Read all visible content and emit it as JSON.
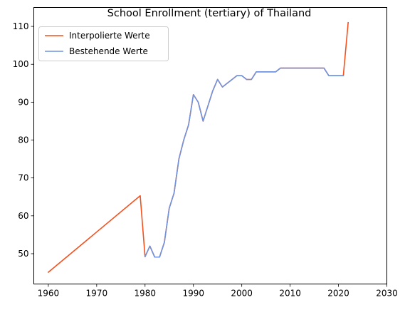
{
  "chart_data": {
    "type": "line",
    "title": "School Enrollment (tertiary) of Thailand",
    "xlabel": "",
    "ylabel": "",
    "xlim": [
      1957,
      2030
    ],
    "ylim": [
      42,
      115
    ],
    "xticks": [
      1960,
      1970,
      1980,
      1990,
      2000,
      2010,
      2020,
      2030
    ],
    "yticks": [
      50,
      60,
      70,
      80,
      90,
      100,
      110
    ],
    "grid": false,
    "legend_position": "top-left",
    "series": [
      {
        "name": "Interpolierte Werte",
        "color": "#f4511e",
        "points": [
          [
            1960,
            45.1
          ],
          [
            1979,
            65.3
          ],
          [
            1980,
            49.2
          ],
          [
            1981,
            52.0
          ],
          [
            1982,
            49.1
          ],
          [
            1983,
            49.1
          ],
          [
            1984,
            53.0
          ],
          [
            1985,
            62.0
          ],
          [
            1986,
            66.0
          ],
          [
            1987,
            75.0
          ],
          [
            1988,
            80.0
          ],
          [
            1989,
            84.0
          ],
          [
            1990,
            92.0
          ],
          [
            1991,
            90.0
          ],
          [
            1992,
            85.0
          ],
          [
            1993,
            89.0
          ],
          [
            1994,
            93.0
          ],
          [
            1995,
            96.0
          ],
          [
            1996,
            94.0
          ],
          [
            1997,
            95.0
          ],
          [
            1998,
            96.0
          ],
          [
            1999,
            97.0
          ],
          [
            2000,
            97.0
          ],
          [
            2001,
            96.0
          ],
          [
            2002,
            96.0
          ],
          [
            2003,
            98.0
          ],
          [
            2004,
            98.0
          ],
          [
            2005,
            98.0
          ],
          [
            2006,
            98.0
          ],
          [
            2007,
            98.0
          ],
          [
            2008,
            99.0
          ],
          [
            2009,
            99.0
          ],
          [
            2010,
            99.0
          ],
          [
            2011,
            99.0
          ],
          [
            2012,
            99.0
          ],
          [
            2013,
            99.0
          ],
          [
            2014,
            99.0
          ],
          [
            2015,
            99.0
          ],
          [
            2016,
            99.0
          ],
          [
            2017,
            99.0
          ],
          [
            2018,
            97.0
          ],
          [
            2019,
            97.0
          ],
          [
            2020,
            97.0
          ],
          [
            2021,
            97.0
          ],
          [
            2022,
            111.0
          ]
        ]
      },
      {
        "name": "Bestehende Werte",
        "color": "#6f93e0",
        "points": [
          [
            1980,
            49.2
          ],
          [
            1981,
            52.0
          ],
          [
            1982,
            49.1
          ],
          [
            1983,
            49.1
          ],
          [
            1984,
            53.0
          ],
          [
            1985,
            62.0
          ],
          [
            1986,
            66.0
          ],
          [
            1987,
            75.0
          ],
          [
            1988,
            80.0
          ],
          [
            1989,
            84.0
          ],
          [
            1990,
            92.0
          ],
          [
            1991,
            90.0
          ],
          [
            1992,
            85.0
          ],
          [
            1993,
            89.0
          ],
          [
            1994,
            93.0
          ],
          [
            1995,
            96.0
          ],
          [
            1996,
            94.0
          ],
          [
            1997,
            95.0
          ],
          [
            1998,
            96.0
          ],
          [
            1999,
            97.0
          ],
          [
            2000,
            97.0
          ],
          [
            2001,
            96.0
          ],
          [
            2002,
            96.0
          ],
          [
            2003,
            98.0
          ],
          [
            2004,
            98.0
          ],
          [
            2005,
            98.0
          ],
          [
            2006,
            98.0
          ],
          [
            2007,
            98.0
          ],
          [
            2008,
            99.0
          ],
          [
            2009,
            99.0
          ],
          [
            2010,
            99.0
          ],
          [
            2011,
            99.0
          ],
          [
            2012,
            99.0
          ],
          [
            2013,
            99.0
          ],
          [
            2014,
            99.0
          ],
          [
            2015,
            99.0
          ],
          [
            2016,
            99.0
          ],
          [
            2017,
            99.0
          ],
          [
            2018,
            97.0
          ],
          [
            2019,
            97.0
          ],
          [
            2020,
            97.0
          ],
          [
            2021,
            97.0
          ]
        ]
      }
    ]
  }
}
